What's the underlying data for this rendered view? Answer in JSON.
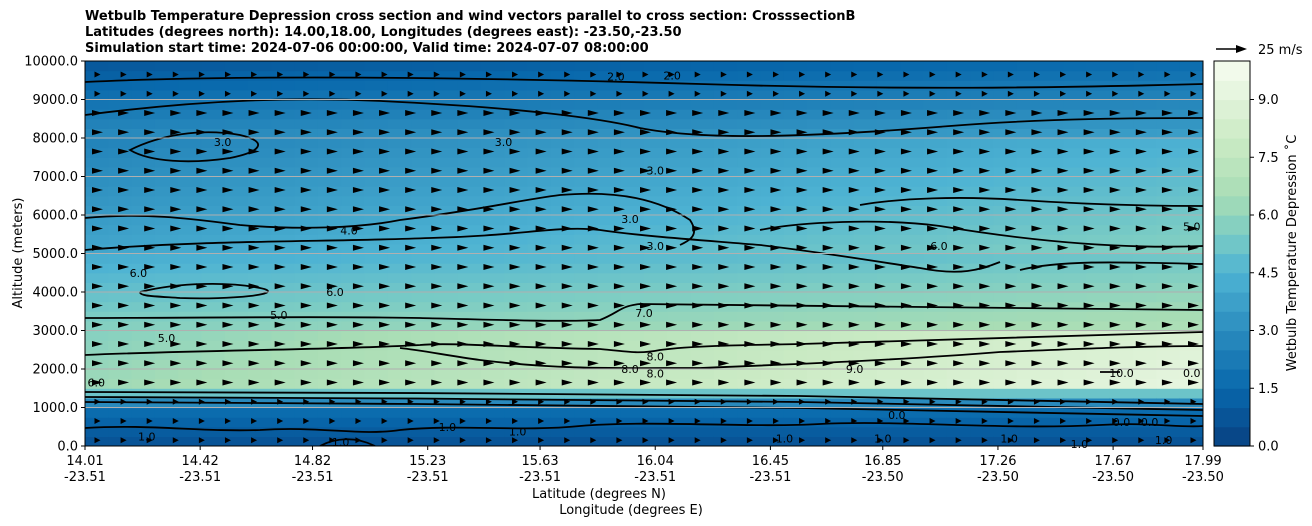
{
  "titles": {
    "line1": "Wetbulb Temperature Depression cross section and wind vectors parallel to cross section: CrosssectionB",
    "line2": "Latitudes (degrees north): 14.00,18.00, Longitudes (degrees east): -23.50,-23.50",
    "line3": "Simulation start time: 2024-07-06 00:00:00, Valid time: 2024-07-07 08:00:00"
  },
  "chart_data": {
    "type": "heatmap",
    "ylabel": "Altitude (meters)",
    "xlabel_lat": "Latitude (degrees N)",
    "xlabel_lon": "Longitude (degrees E)",
    "colorbar_label": "Wetbulb Temperature Depression ˚C",
    "quiver_key": "25 m/s",
    "ylim": [
      0,
      10000
    ],
    "yticks": [
      "0.0",
      "1000.0",
      "2000.0",
      "3000.0",
      "4000.0",
      "5000.0",
      "6000.0",
      "7000.0",
      "8000.0",
      "9000.0",
      "10000.0"
    ],
    "xticks": [
      {
        "lat": "14.01",
        "lon": "-23.51"
      },
      {
        "lat": "14.42",
        "lon": "-23.51"
      },
      {
        "lat": "14.82",
        "lon": "-23.51"
      },
      {
        "lat": "15.23",
        "lon": "-23.51"
      },
      {
        "lat": "15.63",
        "lon": "-23.51"
      },
      {
        "lat": "16.04",
        "lon": "-23.51"
      },
      {
        "lat": "16.45",
        "lon": "-23.51"
      },
      {
        "lat": "16.85",
        "lon": "-23.50"
      },
      {
        "lat": "17.26",
        "lon": "-23.50"
      },
      {
        "lat": "17.67",
        "lon": "-23.50"
      },
      {
        "lat": "17.99",
        "lon": "-23.50"
      }
    ],
    "colorbar_ticks": [
      "0.0",
      "1.5",
      "3.0",
      "4.5",
      "6.0",
      "7.5",
      "9.0"
    ],
    "colorbar_range": [
      0,
      10
    ],
    "contour_labels": [
      {
        "text": "2.0",
        "lat": 15.9,
        "alt": 9600
      },
      {
        "text": "2.0",
        "lat": 16.1,
        "alt": 9620
      },
      {
        "text": "3.0",
        "lat": 14.5,
        "alt": 7900
      },
      {
        "text": "3.0",
        "lat": 15.5,
        "alt": 7900
      },
      {
        "text": "3.0",
        "lat": 16.04,
        "alt": 7150
      },
      {
        "text": "3.0",
        "lat": 15.95,
        "alt": 5900
      },
      {
        "text": "3.0",
        "lat": 16.04,
        "alt": 5200
      },
      {
        "text": "4.0",
        "lat": 14.95,
        "alt": 5600
      },
      {
        "text": "6.0",
        "lat": 14.2,
        "alt": 4500
      },
      {
        "text": "6.0",
        "lat": 14.9,
        "alt": 4000
      },
      {
        "text": "6.0",
        "lat": 17.05,
        "alt": 5200
      },
      {
        "text": "5.0",
        "lat": 14.7,
        "alt": 3400
      },
      {
        "text": "5.0",
        "lat": 14.3,
        "alt": 2800
      },
      {
        "text": "5.0",
        "lat": 17.95,
        "alt": 5700
      },
      {
        "text": "7.0",
        "lat": 16.0,
        "alt": 3460
      },
      {
        "text": "8.0",
        "lat": 16.04,
        "alt": 2330
      },
      {
        "text": "8.0",
        "lat": 16.04,
        "alt": 1880
      },
      {
        "text": "8.0",
        "lat": 15.95,
        "alt": 2000
      },
      {
        "text": "9.0",
        "lat": 16.75,
        "alt": 2000
      },
      {
        "text": "10.0",
        "lat": 17.7,
        "alt": 1900
      },
      {
        "text": "0.0",
        "lat": 17.95,
        "alt": 1900
      },
      {
        "text": "6.0",
        "lat": 14.05,
        "alt": 1650
      },
      {
        "text": "0.0",
        "lat": 16.9,
        "alt": 800
      },
      {
        "text": "0.0",
        "lat": 17.7,
        "alt": 620
      },
      {
        "text": "0.0",
        "lat": 17.8,
        "alt": 620
      },
      {
        "text": "1.0",
        "lat": 14.23,
        "alt": 250
      },
      {
        "text": "1.0",
        "lat": 14.92,
        "alt": 100
      },
      {
        "text": "1.0",
        "lat": 15.3,
        "alt": 500
      },
      {
        "text": "1.0",
        "lat": 15.55,
        "alt": 380
      },
      {
        "text": "1.0",
        "lat": 16.5,
        "alt": 200
      },
      {
        "text": "1.0",
        "lat": 16.85,
        "alt": 200
      },
      {
        "text": "1.0",
        "lat": 17.3,
        "alt": 200
      },
      {
        "text": "1.0",
        "lat": 17.55,
        "alt": 50
      },
      {
        "text": "1.0",
        "lat": 17.85,
        "alt": 150
      }
    ]
  }
}
